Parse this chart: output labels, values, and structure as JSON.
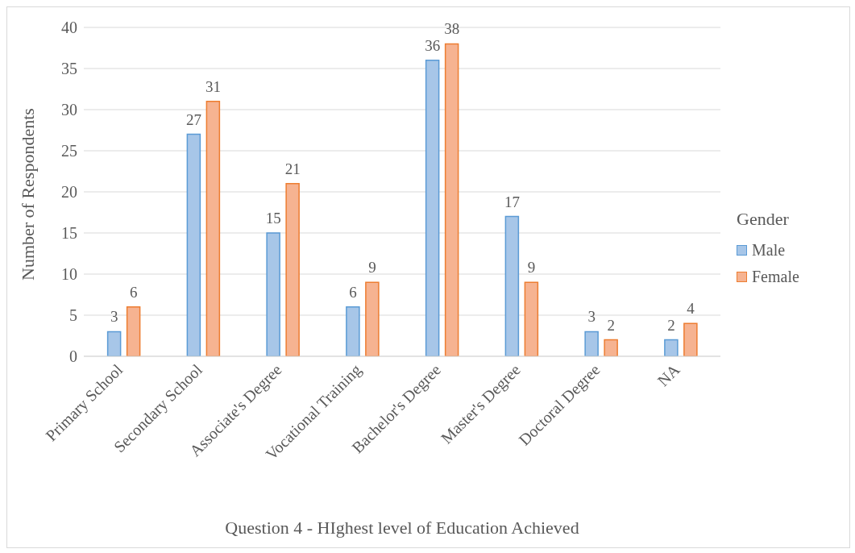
{
  "chart_data": {
    "type": "bar",
    "xlabel": "Question 4 - HIghest level of Education Achieved",
    "ylabel": "Number of Respondents",
    "legend_title": "Gender",
    "categories": [
      "Primary School",
      "Secondary School",
      "Associate's Degree",
      "Vocational Training",
      "Bachelor's Degree",
      "Master's Degree",
      "Doctoral Degree",
      "NA"
    ],
    "series": [
      {
        "name": "Male",
        "color": "#a7c6e8",
        "values": [
          3,
          27,
          15,
          6,
          36,
          17,
          3,
          2
        ]
      },
      {
        "name": "Female",
        "color": "#f6b391",
        "values": [
          6,
          31,
          21,
          9,
          38,
          9,
          2,
          4
        ]
      }
    ],
    "ylim": [
      0,
      40
    ],
    "yticks": [
      0,
      5,
      10,
      15,
      20,
      25,
      30,
      35,
      40
    ],
    "grid": "y",
    "legend": "right",
    "data_labels": true
  }
}
